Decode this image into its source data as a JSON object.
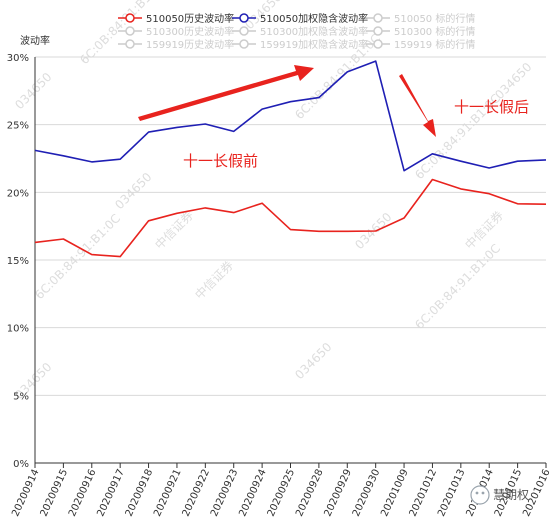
{
  "chart_data": {
    "type": "line",
    "ylabel": "波动率",
    "ylim": [
      0,
      0.3
    ],
    "yticks": [
      {
        "value": 0.0,
        "label": "0%"
      },
      {
        "value": 0.05,
        "label": "5%"
      },
      {
        "value": 0.1,
        "label": "10%"
      },
      {
        "value": 0.15,
        "label": "15%"
      },
      {
        "value": 0.2,
        "label": "20%"
      },
      {
        "value": 0.25,
        "label": "25%"
      },
      {
        "value": 0.3,
        "label": "30%"
      }
    ],
    "grid": true,
    "legend_position": "top",
    "categories": [
      "20200914",
      "20200915",
      "20200916",
      "20200917",
      "20200918",
      "20200921",
      "20200922",
      "20200923",
      "20200924",
      "20200925",
      "20200928",
      "20200929",
      "20200930",
      "20201009",
      "20201012",
      "20201013",
      "20201014",
      "20201015",
      "20201016"
    ],
    "series": [
      {
        "name": "510050历史波动率",
        "color": "#e8231e",
        "values": [
          0.163,
          0.1655,
          0.154,
          0.1525,
          0.179,
          0.1845,
          0.1885,
          0.185,
          0.192,
          0.1725,
          0.1712,
          0.1712,
          0.1714,
          0.181,
          0.2095,
          0.2025,
          0.199,
          0.1915,
          0.1912
        ]
      },
      {
        "name": "510050加权隐含波动率",
        "color": "#1f1fb4",
        "values": [
          0.231,
          0.227,
          0.2225,
          0.2245,
          0.2445,
          0.248,
          0.2505,
          0.245,
          0.2615,
          0.267,
          0.27,
          0.289,
          0.297,
          0.216,
          0.2285,
          0.223,
          0.218,
          0.223,
          0.224
        ]
      }
    ],
    "inactive_legend": [
      {
        "name": "510050 标的行情"
      },
      {
        "name": "510300历史波动率"
      },
      {
        "name": "510300加权隐含波动率"
      },
      {
        "name": "510300 标的行情"
      },
      {
        "name": "159919历史波动率"
      },
      {
        "name": "159919加权隐含波动率"
      },
      {
        "name": "159919 标的行情"
      }
    ],
    "annotations": [
      {
        "text": "十一长假前",
        "color": "#e8231e"
      },
      {
        "text": "十一长假后",
        "color": "#e8231e"
      }
    ],
    "watermarks": [
      "034650",
      "6C:0B:84:91:B1:0C",
      "中信证券"
    ],
    "corner_logo": "慧期权"
  }
}
